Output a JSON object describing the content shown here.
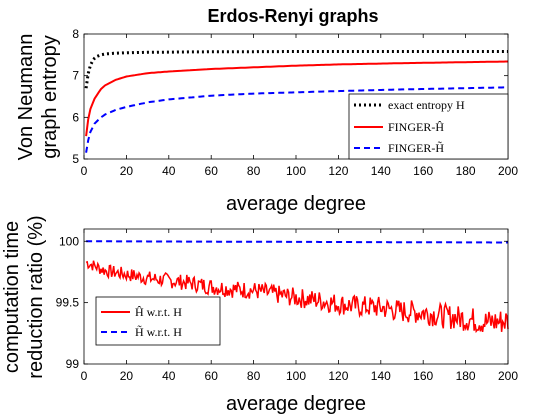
{
  "chart_data": [
    {
      "type": "line",
      "title": "Erdos-Renyi graphs",
      "xlabel": "average degree",
      "ylabel": [
        "Von Neumann",
        "graph entropy"
      ],
      "xlim": [
        0,
        200
      ],
      "ylim": [
        5,
        8
      ],
      "xticks": [
        "0",
        "20",
        "40",
        "60",
        "80",
        "100",
        "120",
        "140",
        "160",
        "180",
        "200"
      ],
      "yticks": [
        "5",
        "6",
        "7",
        "8"
      ],
      "grid": false,
      "legend_position": "bottom-right",
      "series": [
        {
          "name": "exact entropy H",
          "color": "#000000",
          "style": "dotted",
          "x": [
            1,
            2,
            3,
            4,
            5,
            6,
            8,
            10,
            15,
            20,
            30,
            50,
            100,
            150,
            200
          ],
          "y": [
            6.7,
            7.05,
            7.25,
            7.35,
            7.42,
            7.46,
            7.5,
            7.52,
            7.54,
            7.55,
            7.56,
            7.57,
            7.58,
            7.58,
            7.58
          ]
        },
        {
          "name": "FINGER-Ĥ",
          "color": "#ff0000",
          "style": "solid",
          "x": [
            1,
            2,
            3,
            5,
            8,
            10,
            15,
            20,
            30,
            40,
            60,
            80,
            100,
            120,
            150,
            200
          ],
          "y": [
            5.55,
            5.95,
            6.2,
            6.45,
            6.68,
            6.77,
            6.9,
            6.98,
            7.06,
            7.1,
            7.16,
            7.2,
            7.24,
            7.27,
            7.3,
            7.34
          ]
        },
        {
          "name": "FINGER-H̃",
          "color": "#0000ff",
          "style": "dashed",
          "x": [
            1,
            2,
            3,
            5,
            8,
            10,
            15,
            20,
            30,
            40,
            60,
            80,
            100,
            120,
            150,
            200
          ],
          "y": [
            5.15,
            5.45,
            5.65,
            5.85,
            6.0,
            6.07,
            6.18,
            6.25,
            6.36,
            6.43,
            6.52,
            6.57,
            6.6,
            6.63,
            6.67,
            6.72
          ]
        }
      ]
    },
    {
      "type": "line",
      "xlabel": "average degree",
      "ylabel": [
        "computation time",
        "reduction ratio (%)"
      ],
      "xlim": [
        0,
        200
      ],
      "ylim": [
        99,
        100.1
      ],
      "xticks": [
        "0",
        "20",
        "40",
        "60",
        "80",
        "100",
        "120",
        "140",
        "160",
        "180",
        "200"
      ],
      "yticks": [
        "99",
        "99.5",
        "100"
      ],
      "grid": false,
      "legend_position": "bottom-left",
      "series": [
        {
          "name": "Ĥ w.r.t. H",
          "color": "#ff0000",
          "style": "solid",
          "x": [
            1,
            10,
            20,
            30,
            40,
            50,
            60,
            70,
            80,
            90,
            100,
            110,
            120,
            130,
            140,
            150,
            160,
            170,
            180,
            190,
            200
          ],
          "y": [
            99.83,
            99.76,
            99.73,
            99.7,
            99.68,
            99.66,
            99.63,
            99.61,
            99.6,
            99.57,
            99.54,
            99.52,
            99.49,
            99.47,
            99.46,
            99.43,
            99.42,
            99.39,
            99.37,
            99.34,
            99.35
          ]
        },
        {
          "name": "H̃ w.r.t. H",
          "color": "#0000ff",
          "style": "dashed",
          "x": [
            1,
            200
          ],
          "y": [
            100.0,
            99.99
          ]
        }
      ]
    }
  ]
}
